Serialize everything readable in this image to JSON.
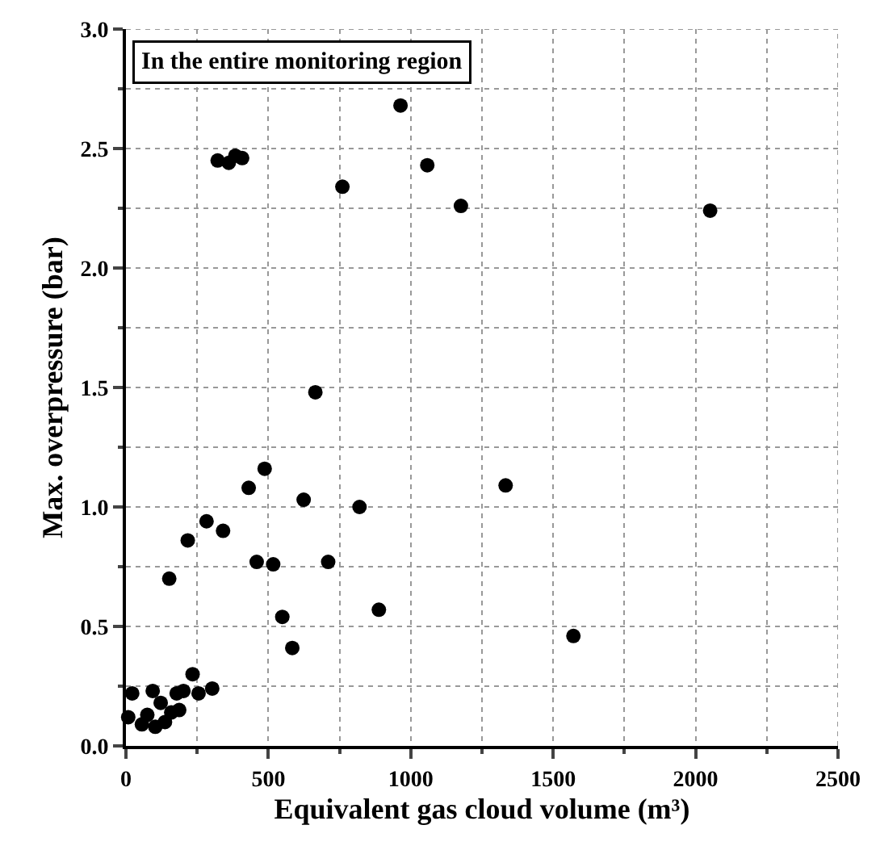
{
  "chart_data": {
    "type": "scatter",
    "xlabel": "Equivalent gas cloud volume (m³)",
    "ylabel": "Max. overpressure (bar)",
    "annotations": [
      "In the entire monitoring region"
    ],
    "x": [
      322,
      361,
      384,
      408,
      964,
      1058,
      760,
      1176,
      2051,
      665,
      487,
      431,
      1333,
      624,
      820,
      283,
      341,
      217,
      459,
      517,
      710,
      152,
      888,
      549,
      584,
      1571,
      234,
      22,
      94,
      178,
      202,
      255,
      303,
      122,
      187,
      159,
      75,
      56,
      103,
      137,
      8
    ],
    "series": [
      {
        "color": "#000000",
        "values": [
          2.45,
          2.44,
          2.47,
          2.46,
          2.68,
          2.43,
          2.34,
          2.26,
          2.24,
          1.48,
          1.16,
          1.08,
          1.09,
          1.03,
          1.0,
          0.94,
          0.9,
          0.86,
          0.77,
          0.76,
          0.77,
          0.7,
          0.57,
          0.54,
          0.41,
          0.46,
          0.3,
          0.22,
          0.23,
          0.22,
          0.23,
          0.22,
          0.24,
          0.18,
          0.15,
          0.14,
          0.13,
          0.09,
          0.08,
          0.1,
          0.12
        ]
      }
    ],
    "xlim": [
      0,
      2500
    ],
    "xticks": [
      0,
      500,
      1000,
      1500,
      2000,
      2500
    ],
    "ylim": [
      0,
      3.0
    ],
    "yticks": [
      {
        "value": 0,
        "label": "0.0"
      },
      {
        "value": 0.5,
        "label": "0.5"
      },
      {
        "value": 1.0,
        "label": "1.0"
      },
      {
        "value": 1.5,
        "label": "1.5"
      },
      {
        "value": 2.0,
        "label": "2.0"
      },
      {
        "value": 2.5,
        "label": "2.5"
      },
      {
        "value": 3.0,
        "label": "3.0"
      }
    ],
    "grid": true,
    "legend": false,
    "marker": "circle"
  }
}
